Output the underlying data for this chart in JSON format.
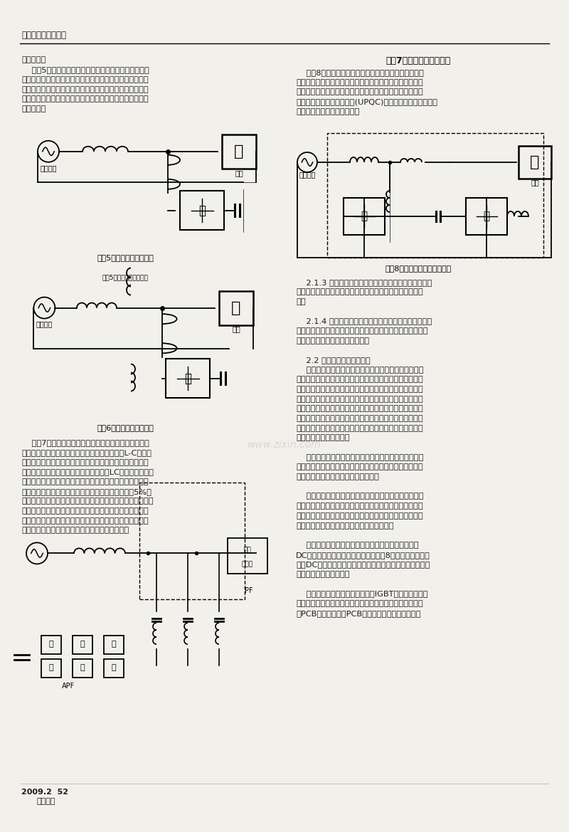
{
  "page_bg": "#f2f0eb",
  "text_color": "#1a1a1a",
  "header_text": "电工文摘／技术交流",
  "footer_year": "2009.2",
  "footer_page": "52",
  "footer_source": "万方数据",
  "watermark": "www.zixin.com",
  "left_paragraphs_1": [
    "拓补结构。",
    "    图表5所示为并联型有源滤波器的基本结构。它主要适",
    "用于电流源型非线性负载的谐波电流抵消、无功补偿以及平",
    "衡三相系统中的不平衡电流等。目前并联型有源滤波器在技",
    "术上已较成熟，它也是当前应用最为广泛的一种有源滤波器",
    "拓补结构。"
  ],
  "left_paragraphs_2": [
    "    图表7所示为混合型有源滤波器的基本结构。它是在串",
    "联型有源滤波器的基础上使用一些大容量的无源L-C滤波网",
    "络来承担消除低次谐波，进行无功补偿的任务。而串联型有",
    "源滤波器只承担消除高次谐振及阻尼无源LC网络与线路阻抗",
    "产生的谐波谐振的任务。从而使串联型有源滤波器的电流、",
    "电压额定值大大减少（功率容量可减少到负载容量的5%以",
    "下），降低了有源滤波器的成本和体积。从经济角度而言，这",
    "种结构形式在目前是一种值得推荐的方案。但随着电力电子",
    "器件性能的不断提高，成本不断下降，混合型有源滤波器可",
    "能被下面一种性能价格比更高的有源滤波器代替。"
  ],
  "right_paragraphs_1": [
    "    图表8所示为串一并联型有源滤波器的基本结构。它组",
    "合了串联有源滤波器和并联有源滤波器的优点，能解决电气",
    "系统发生的大多数电能质量问题，所以又称之为万能有源滤",
    "波器或统一电能质量调节器(UPQC)，该类有源滤波器的主要",
    "问题是控制复杂、造价较高。"
  ],
  "right_paragraphs_2": [
    "    2.1.3 根据补偿系统的相数来分类，有源滤波器可分为",
    "单相和三相两种，三相又系统又分为三相三线制和三相四线",
    "制。",
    "",
    "    2.1.4 根据应用场合分，有源电力滤波器还可以分为应",
    "用在直流系统（主要是高压直流输电系统）的有源直流滤波器",
    "和应用在交流系统的有源滤波器。",
    "",
    "    2.2 有源滤波器功能与结构",
    "    电力系统的主要谐波主要是负载的非线性引起的，尤其",
    "是目前广泛应用的电力电子设备在根据需要进行功率变换的",
    "时候，将流经他们的基波功率中的一部分转化为谐波功率，",
    "变成注入电网的谐波电流。由于该电流的量值通常只与本身",
    "固有的非线性特性和工况有关，而与外加的端电压及外部阻",
    "抗的变化关系不大，所以一般认为非线性负载具有电流源的",
    "特性。谐波电流流入系统，系统中存在感抗和阻抗，引起谐",
    "波电压，从而污染电网。",
    "",
    "    因此，目前广泛应用并联型有源电力滤波器来滤除非线",
    "性负载产生的谐波，从而使流入系统的电流中不含有谐波分",
    "量，防止了非线性负载对系统的污染。",
    "",
    "    并联型有源电力滤波器主要适用于电流源型非线性负载",
    "的谐波电流抵消、无功补偿以及平衡三相系统中的不平衡电",
    "流等。目前并联型有源滤波器在技术上已较成熟，它也是当",
    "前应用最为广泛的一种有源滤波器拓补结构。",
    "",
    "    断路器合闸后，有源电力滤波器首先通过预充电阻对",
    "DC母线的电容器充电，这个过程会持续8秒钟，是防止充电",
    "后对DC直流母线电容器的瞬间冲击。当母线电压达到额定值",
    "后，预充电接触器闭合。",
    "",
    "    直流电容作为储能元件，为通过IGBT逆变器和内部电",
    "抗器向外输出补偿电流提供能量。同时，直流电容器通过电",
    "源PCB向内部的控制PCB和电子电路提供工作电源。"
  ],
  "diag5_label_title": "电力系统",
  "diag5_label_load": "负荷",
  "diag5_caption": "图表5：并联型有源滤波器",
  "diag6_caption_inner": "图表5：并联型有源滤波器",
  "diag6_caption": "图表6：串联型有源滤波器",
  "diag7_caption": "图表7：混合型有源滤波器",
  "diag8_caption": "图表8：串一并联型有源滤波器"
}
